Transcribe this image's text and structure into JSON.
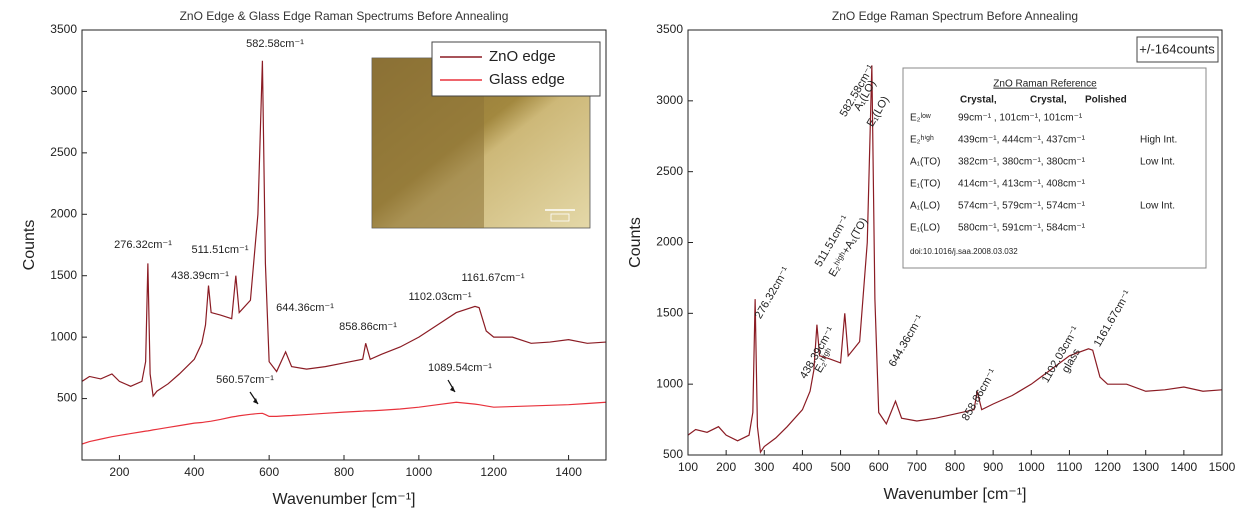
{
  "chart_data": [
    {
      "type": "line",
      "title": "ZnO Edge & Glass Edge Raman Spectrums Before Annealing",
      "x_label": "Wavenumber [cm⁻¹]",
      "y_label": "Counts",
      "xlim": [
        100,
        1500
      ],
      "xticks": [
        200,
        400,
        600,
        800,
        1000,
        1200,
        1400
      ],
      "ylim": [
        0,
        3500
      ],
      "yticks": [
        500,
        1000,
        1500,
        2000,
        2500,
        3000,
        3500
      ],
      "legend": "upper right",
      "x": [
        100,
        120,
        150,
        180,
        200,
        230,
        260,
        270,
        276,
        282,
        290,
        300,
        330,
        360,
        400,
        420,
        430,
        438,
        445,
        470,
        500,
        511,
        520,
        550,
        570,
        582,
        590,
        600,
        620,
        644,
        660,
        700,
        750,
        800,
        850,
        858,
        870,
        900,
        950,
        1000,
        1050,
        1100,
        1150,
        1161,
        1180,
        1200,
        1250,
        1300,
        1350,
        1400,
        1450,
        1500
      ],
      "series": [
        {
          "name": "ZnO edge",
          "color": "#8b1c24",
          "values": [
            640,
            680,
            660,
            700,
            640,
            600,
            640,
            800,
            1600,
            700,
            520,
            560,
            620,
            700,
            820,
            950,
            1100,
            1420,
            1200,
            1180,
            1150,
            1500,
            1200,
            1300,
            2000,
            3250,
            1600,
            800,
            720,
            880,
            760,
            740,
            760,
            790,
            820,
            950,
            820,
            860,
            920,
            1000,
            1100,
            1200,
            1250,
            1240,
            1050,
            1000,
            1000,
            950,
            960,
            980,
            950,
            960
          ]
        },
        {
          "name": "Glass edge",
          "color": "#e8323c",
          "values": [
            130,
            150,
            170,
            190,
            200,
            215,
            230,
            235,
            237,
            240,
            245,
            250,
            265,
            280,
            300,
            305,
            310,
            313,
            316,
            330,
            350,
            355,
            360,
            372,
            378,
            380,
            370,
            355,
            355,
            360,
            362,
            370,
            380,
            390,
            398,
            400,
            400,
            405,
            415,
            430,
            450,
            470,
            455,
            450,
            440,
            430,
            435,
            440,
            445,
            450,
            460,
            470
          ]
        }
      ],
      "annotations": [
        "582.58cm⁻¹",
        "276.32cm⁻¹",
        "438.39cm⁻¹",
        "511.51cm⁻¹",
        "644.36cm⁻¹",
        "858.86cm⁻¹",
        "1102.03cm⁻¹",
        "1161.67cm⁻¹",
        "560.57cm⁻¹",
        "1089.54cm⁻¹"
      ]
    },
    {
      "type": "line",
      "title": "ZnO Edge Raman Spectrum Before Annealing",
      "x_label": "Wavenumber [cm⁻¹]",
      "y_label": "Counts",
      "xlim": [
        100,
        1500
      ],
      "xticks": [
        100,
        200,
        300,
        400,
        500,
        600,
        700,
        800,
        900,
        1000,
        1100,
        1200,
        1300,
        1400,
        1500
      ],
      "ylim": [
        500,
        3500
      ],
      "yticks": [
        500,
        1000,
        1500,
        2000,
        2500,
        3000,
        3500
      ],
      "x": [
        100,
        120,
        150,
        180,
        200,
        230,
        260,
        270,
        276,
        282,
        290,
        300,
        330,
        360,
        400,
        420,
        430,
        438,
        445,
        470,
        500,
        511,
        520,
        550,
        570,
        582,
        590,
        600,
        620,
        644,
        660,
        700,
        750,
        800,
        850,
        858,
        870,
        900,
        950,
        1000,
        1050,
        1100,
        1150,
        1161,
        1180,
        1200,
        1250,
        1300,
        1350,
        1400,
        1450,
        1500
      ],
      "series": [
        {
          "color": "#8b1c24",
          "values": [
            640,
            680,
            660,
            700,
            640,
            600,
            640,
            800,
            1600,
            700,
            520,
            560,
            620,
            700,
            820,
            950,
            1100,
            1420,
            1200,
            1180,
            1150,
            1500,
            1200,
            1300,
            2000,
            3250,
            1600,
            800,
            720,
            880,
            760,
            740,
            760,
            790,
            820,
            950,
            820,
            860,
            920,
            1000,
            1100,
            1200,
            1250,
            1240,
            1050,
            1000,
            1000,
            950,
            960,
            980,
            950,
            960
          ]
        }
      ],
      "annotations": [
        "276.32cm⁻¹",
        "438.39cm⁻¹",
        "E₂ʰⁱᵍʰ",
        "511.51cm⁻¹",
        "E₂ʰⁱᵍʰ+A₁(TO)",
        "582.58cm⁻¹",
        "A₁(LO)",
        "E₁(LO)",
        "644.36cm⁻¹",
        "858.86cm⁻¹",
        "1102.03cm⁻¹",
        "glass",
        "1161.67cm⁻¹"
      ]
    }
  ],
  "reference": {
    "count_note": "+/-164counts",
    "title": "ZnO Raman Reference",
    "columns": [
      "Crystal,",
      "Crystal,",
      "Polished"
    ],
    "rows": [
      {
        "mode": "E₂ˡᵒʷ",
        "values": "99cm⁻¹ , 101cm⁻¹, 101cm⁻¹"
      },
      {
        "mode": "E₂ʰⁱᵍʰ",
        "values": "439cm⁻¹, 444cm⁻¹, 437cm⁻¹",
        "note": "High Int."
      },
      {
        "mode": "A₁(TO)",
        "values": "382cm⁻¹, 380cm⁻¹, 380cm⁻¹",
        "note": "Low Int."
      },
      {
        "mode": "E₁(TO)",
        "values": "414cm⁻¹, 413cm⁻¹, 408cm⁻¹"
      },
      {
        "mode": "A₁(LO)",
        "values": "574cm⁻¹, 579cm⁻¹, 574cm⁻¹",
        "note": "Low Int."
      },
      {
        "mode": "E₁(LO)",
        "values": "580cm⁻¹, 591cm⁻¹, 584cm⁻¹"
      }
    ],
    "doi": "doi:10.1016/j.saa.2008.03.032"
  }
}
